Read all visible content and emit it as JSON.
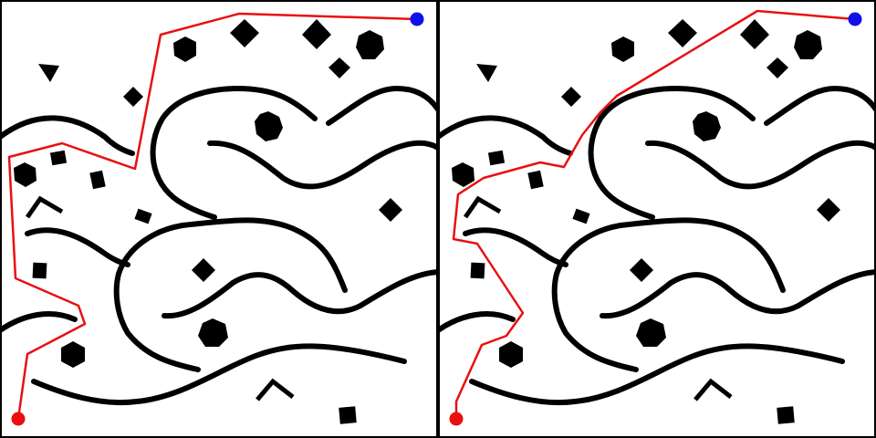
{
  "panels": [
    {
      "id": "left",
      "label": "path-a"
    },
    {
      "id": "right",
      "label": "path-b"
    }
  ],
  "colors": {
    "background": "#ffffff",
    "wall": "#000000",
    "obstacle": "#000000",
    "route": "#e81010",
    "start_marker": "#e81010",
    "goal_marker": "#1010e8"
  },
  "icons": {
    "start": "red-dot-icon",
    "goal": "blue-dot-icon"
  }
}
